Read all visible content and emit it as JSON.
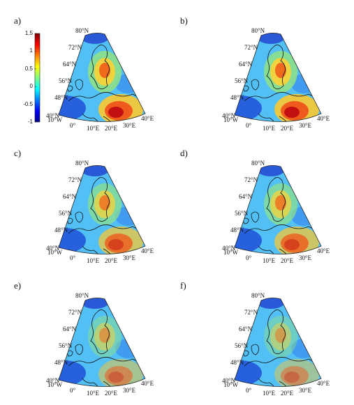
{
  "figure": {
    "panels": [
      {
        "label": "a)",
        "lat_labels": [
          "80°N",
          "72°N",
          "64°N",
          "56°N",
          "48°N",
          "40°N"
        ],
        "lon_labels": [
          "10°W",
          "0°",
          "10°E",
          "20°E",
          "30°E",
          "40°E"
        ],
        "intensity": 1.0
      },
      {
        "label": "b)",
        "lat_labels": [
          "80°N",
          "72°N",
          "64°N",
          "56°N",
          "48°N",
          "40°N"
        ],
        "lon_labels": [
          "10°W",
          "0°",
          "10°E",
          "20°E",
          "30°E",
          "40°E"
        ],
        "intensity": 1.0
      },
      {
        "label": "c)",
        "lat_labels": [
          "80°N",
          "72°N",
          "64°N",
          "56°N",
          "48°N",
          "40°N"
        ],
        "lon_labels": [
          "10°W",
          "0°",
          "10°E",
          "20°E",
          "30°E",
          "40°E"
        ],
        "intensity": 0.8
      },
      {
        "label": "d)",
        "lat_labels": [
          "80°N",
          "72°N",
          "64°N",
          "56°N",
          "48°N",
          "40°N"
        ],
        "lon_labels": [
          "10°W",
          "0°",
          "10°E",
          "20°E",
          "30°E",
          "40°E"
        ],
        "intensity": 0.8
      },
      {
        "label": "e)",
        "lat_labels": [
          "80°N",
          "72°N",
          "64°N",
          "56°N",
          "48°N",
          "40°N"
        ],
        "lon_labels": [
          "10°W",
          "0°",
          "10°E",
          "20°E",
          "30°E",
          "40°E"
        ],
        "intensity": 0.55
      },
      {
        "label": "f)",
        "lat_labels": [
          "80°N",
          "72°N",
          "64°N",
          "56°N",
          "48°N",
          "40°N"
        ],
        "lon_labels": [
          "10°W",
          "0°",
          "10°E",
          "20°E",
          "30°E",
          "40°E"
        ],
        "intensity": 0.5
      }
    ],
    "colorbar": {
      "ticks": [
        "1.5",
        "1",
        "0.5",
        "0",
        "-0.5",
        "-1"
      ],
      "range": [
        -1,
        1.5
      ],
      "colormap": [
        "#00008f",
        "#0000ff",
        "#0080ff",
        "#00ffff",
        "#80ff80",
        "#ffff00",
        "#ff8000",
        "#ff0000",
        "#800000"
      ]
    }
  }
}
